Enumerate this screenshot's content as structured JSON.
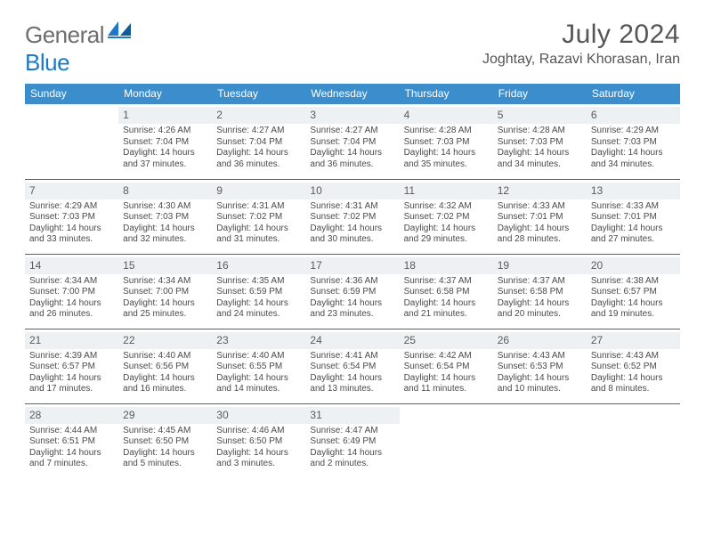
{
  "brand": {
    "text1": "General",
    "text2": "Blue"
  },
  "title": "July 2024",
  "location": "Joghtay, Razavi Khorasan, Iran",
  "headers": [
    "Sunday",
    "Monday",
    "Tuesday",
    "Wednesday",
    "Thursday",
    "Friday",
    "Saturday"
  ],
  "colors": {
    "header_bg": "#3c8dcc",
    "header_text": "#ffffff",
    "row_border": "#2f6fa6",
    "daynum_bg": "#eef1f3",
    "logo_blue": "#1e78c8",
    "logo_gray": "#6e6e6e",
    "body_text": "#444444"
  },
  "weeks": [
    [
      null,
      {
        "n": "1",
        "sr": "4:26 AM",
        "ss": "7:04 PM",
        "dl": "14 hours and 37 minutes."
      },
      {
        "n": "2",
        "sr": "4:27 AM",
        "ss": "7:04 PM",
        "dl": "14 hours and 36 minutes."
      },
      {
        "n": "3",
        "sr": "4:27 AM",
        "ss": "7:04 PM",
        "dl": "14 hours and 36 minutes."
      },
      {
        "n": "4",
        "sr": "4:28 AM",
        "ss": "7:03 PM",
        "dl": "14 hours and 35 minutes."
      },
      {
        "n": "5",
        "sr": "4:28 AM",
        "ss": "7:03 PM",
        "dl": "14 hours and 34 minutes."
      },
      {
        "n": "6",
        "sr": "4:29 AM",
        "ss": "7:03 PM",
        "dl": "14 hours and 34 minutes."
      }
    ],
    [
      {
        "n": "7",
        "sr": "4:29 AM",
        "ss": "7:03 PM",
        "dl": "14 hours and 33 minutes."
      },
      {
        "n": "8",
        "sr": "4:30 AM",
        "ss": "7:03 PM",
        "dl": "14 hours and 32 minutes."
      },
      {
        "n": "9",
        "sr": "4:31 AM",
        "ss": "7:02 PM",
        "dl": "14 hours and 31 minutes."
      },
      {
        "n": "10",
        "sr": "4:31 AM",
        "ss": "7:02 PM",
        "dl": "14 hours and 30 minutes."
      },
      {
        "n": "11",
        "sr": "4:32 AM",
        "ss": "7:02 PM",
        "dl": "14 hours and 29 minutes."
      },
      {
        "n": "12",
        "sr": "4:33 AM",
        "ss": "7:01 PM",
        "dl": "14 hours and 28 minutes."
      },
      {
        "n": "13",
        "sr": "4:33 AM",
        "ss": "7:01 PM",
        "dl": "14 hours and 27 minutes."
      }
    ],
    [
      {
        "n": "14",
        "sr": "4:34 AM",
        "ss": "7:00 PM",
        "dl": "14 hours and 26 minutes."
      },
      {
        "n": "15",
        "sr": "4:34 AM",
        "ss": "7:00 PM",
        "dl": "14 hours and 25 minutes."
      },
      {
        "n": "16",
        "sr": "4:35 AM",
        "ss": "6:59 PM",
        "dl": "14 hours and 24 minutes."
      },
      {
        "n": "17",
        "sr": "4:36 AM",
        "ss": "6:59 PM",
        "dl": "14 hours and 23 minutes."
      },
      {
        "n": "18",
        "sr": "4:37 AM",
        "ss": "6:58 PM",
        "dl": "14 hours and 21 minutes."
      },
      {
        "n": "19",
        "sr": "4:37 AM",
        "ss": "6:58 PM",
        "dl": "14 hours and 20 minutes."
      },
      {
        "n": "20",
        "sr": "4:38 AM",
        "ss": "6:57 PM",
        "dl": "14 hours and 19 minutes."
      }
    ],
    [
      {
        "n": "21",
        "sr": "4:39 AM",
        "ss": "6:57 PM",
        "dl": "14 hours and 17 minutes."
      },
      {
        "n": "22",
        "sr": "4:40 AM",
        "ss": "6:56 PM",
        "dl": "14 hours and 16 minutes."
      },
      {
        "n": "23",
        "sr": "4:40 AM",
        "ss": "6:55 PM",
        "dl": "14 hours and 14 minutes."
      },
      {
        "n": "24",
        "sr": "4:41 AM",
        "ss": "6:54 PM",
        "dl": "14 hours and 13 minutes."
      },
      {
        "n": "25",
        "sr": "4:42 AM",
        "ss": "6:54 PM",
        "dl": "14 hours and 11 minutes."
      },
      {
        "n": "26",
        "sr": "4:43 AM",
        "ss": "6:53 PM",
        "dl": "14 hours and 10 minutes."
      },
      {
        "n": "27",
        "sr": "4:43 AM",
        "ss": "6:52 PM",
        "dl": "14 hours and 8 minutes."
      }
    ],
    [
      {
        "n": "28",
        "sr": "4:44 AM",
        "ss": "6:51 PM",
        "dl": "14 hours and 7 minutes."
      },
      {
        "n": "29",
        "sr": "4:45 AM",
        "ss": "6:50 PM",
        "dl": "14 hours and 5 minutes."
      },
      {
        "n": "30",
        "sr": "4:46 AM",
        "ss": "6:50 PM",
        "dl": "14 hours and 3 minutes."
      },
      {
        "n": "31",
        "sr": "4:47 AM",
        "ss": "6:49 PM",
        "dl": "14 hours and 2 minutes."
      },
      null,
      null,
      null
    ]
  ],
  "labels": {
    "sunrise": "Sunrise: ",
    "sunset": "Sunset: ",
    "daylight": "Daylight: "
  }
}
